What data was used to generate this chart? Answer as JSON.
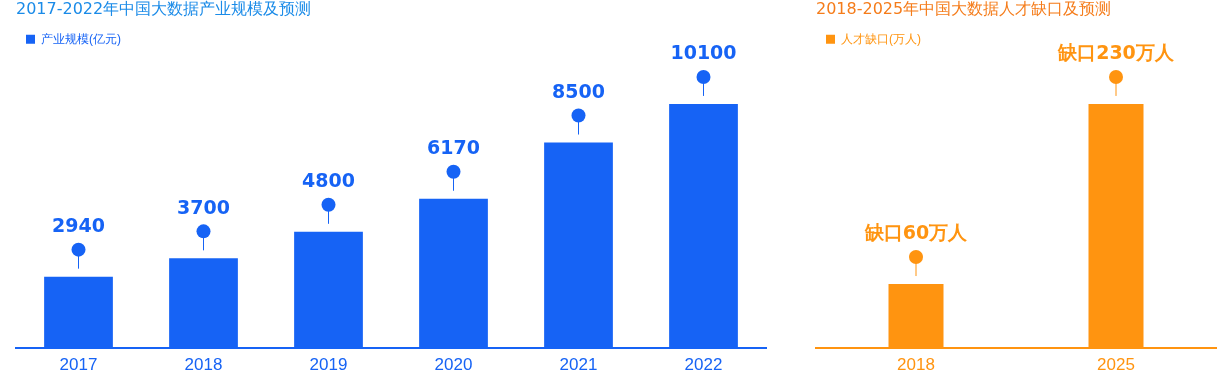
{
  "chart_data": [
    {
      "type": "bar",
      "title": "2017-2022年中国大数据产业规模及预测",
      "categories": [
        "2017",
        "2018",
        "2019",
        "2020",
        "2021",
        "2022"
      ],
      "series": [
        {
          "name": "产业规模(亿元)",
          "color": "#1663f5",
          "values": [
            2940,
            3700,
            4800,
            6170,
            8500,
            10100
          ]
        }
      ],
      "data_labels": true,
      "legend": "top left",
      "grid": false,
      "tick_labels": "x"
    },
    {
      "type": "bar",
      "title": "2018-2025年中国大数据人才缺口及预测",
      "categories": [
        "2018",
        "2025"
      ],
      "series": [
        {
          "name": "人才缺口(万人)",
          "color": "#ff9410",
          "values": [
            60,
            230
          ],
          "value_labels": [
            "缺口60万人",
            "缺口230万人"
          ]
        }
      ],
      "legend": "top left",
      "grid": false,
      "tick_labels": "x"
    }
  ]
}
